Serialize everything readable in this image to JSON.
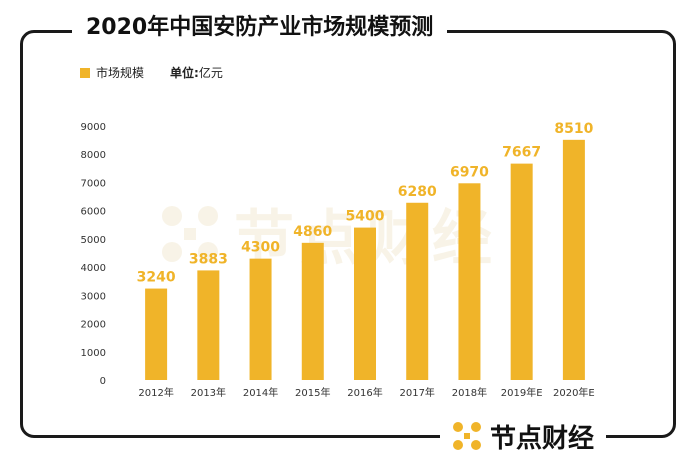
{
  "title": "2020年中国安防产业市场规模预测",
  "legend": {
    "label": "市场规模"
  },
  "unit": {
    "key": "单位:",
    "value": "亿元"
  },
  "brand": {
    "name": "节点财经"
  },
  "colors": {
    "bar": "#F0B429",
    "label": "#F0B429",
    "frame": "#1a1a1a",
    "axis_text": "#333333"
  },
  "chart_data": {
    "type": "bar",
    "categories": [
      "2012年",
      "2013年",
      "2014年",
      "2015年",
      "2016年",
      "2017年",
      "2018年",
      "2019年E",
      "2020年E"
    ],
    "series": [
      {
        "name": "市场规模",
        "values": [
          3240,
          3883,
          4300,
          4860,
          5400,
          6280,
          6970,
          7667,
          8510
        ]
      }
    ],
    "ylim": [
      0,
      9000
    ],
    "yticks": [
      0,
      1000,
      2000,
      3000,
      4000,
      5000,
      6000,
      7000,
      8000,
      9000
    ],
    "grid": false,
    "legend_position": "top-left",
    "xlabel": "",
    "ylabel": ""
  }
}
